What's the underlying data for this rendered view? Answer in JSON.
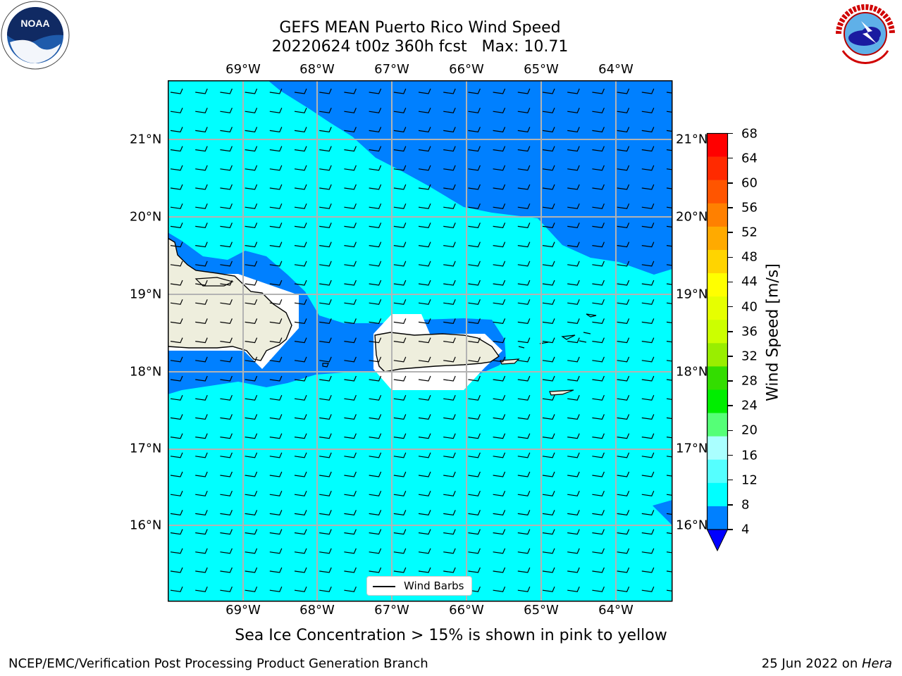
{
  "title_line1": "GEFS MEAN Puerto Rico Wind Speed",
  "title_line2": "20220624 t00z 360h fcst   Max: 10.71",
  "lon_labels": [
    "69°W",
    "68°W",
    "67°W",
    "66°W",
    "65°W",
    "64°W"
  ],
  "lat_labels": [
    "21°N",
    "20°N",
    "19°N",
    "18°N",
    "17°N",
    "16°N"
  ],
  "colorbar": {
    "label": "Wind Speed [m/s]",
    "ticks": [
      "68",
      "64",
      "60",
      "56",
      "52",
      "48",
      "44",
      "40",
      "36",
      "32",
      "28",
      "24",
      "20",
      "16",
      "12",
      "8",
      "4"
    ],
    "colors": [
      "#ff0000",
      "#ff2a00",
      "#ff5500",
      "#ff8000",
      "#ffaa00",
      "#ffd400",
      "#ffff00",
      "#e6ff00",
      "#ccff00",
      "#99ee00",
      "#33dd00",
      "#00ee00",
      "#55ff77",
      "#aaffff",
      "#55ffff",
      "#00ffff",
      "#0080ff"
    ],
    "extend_color": "#0000ff"
  },
  "legend_label": "Wind Barbs",
  "subtitle": "Sea Ice Concentration > 15% is shown in pink to yellow",
  "footer_left": "NCEP/EMC/Verification Post Processing Product Generation Branch",
  "footer_right_date": "25 Jun 2022 on ",
  "footer_right_host": "Hera",
  "logos": [
    "noaa-logo",
    "national-weather-service-logo"
  ],
  "field_colors": {
    "cyan": "#00ffff",
    "blue": "#0080ff",
    "land": "#eeeedd"
  }
}
